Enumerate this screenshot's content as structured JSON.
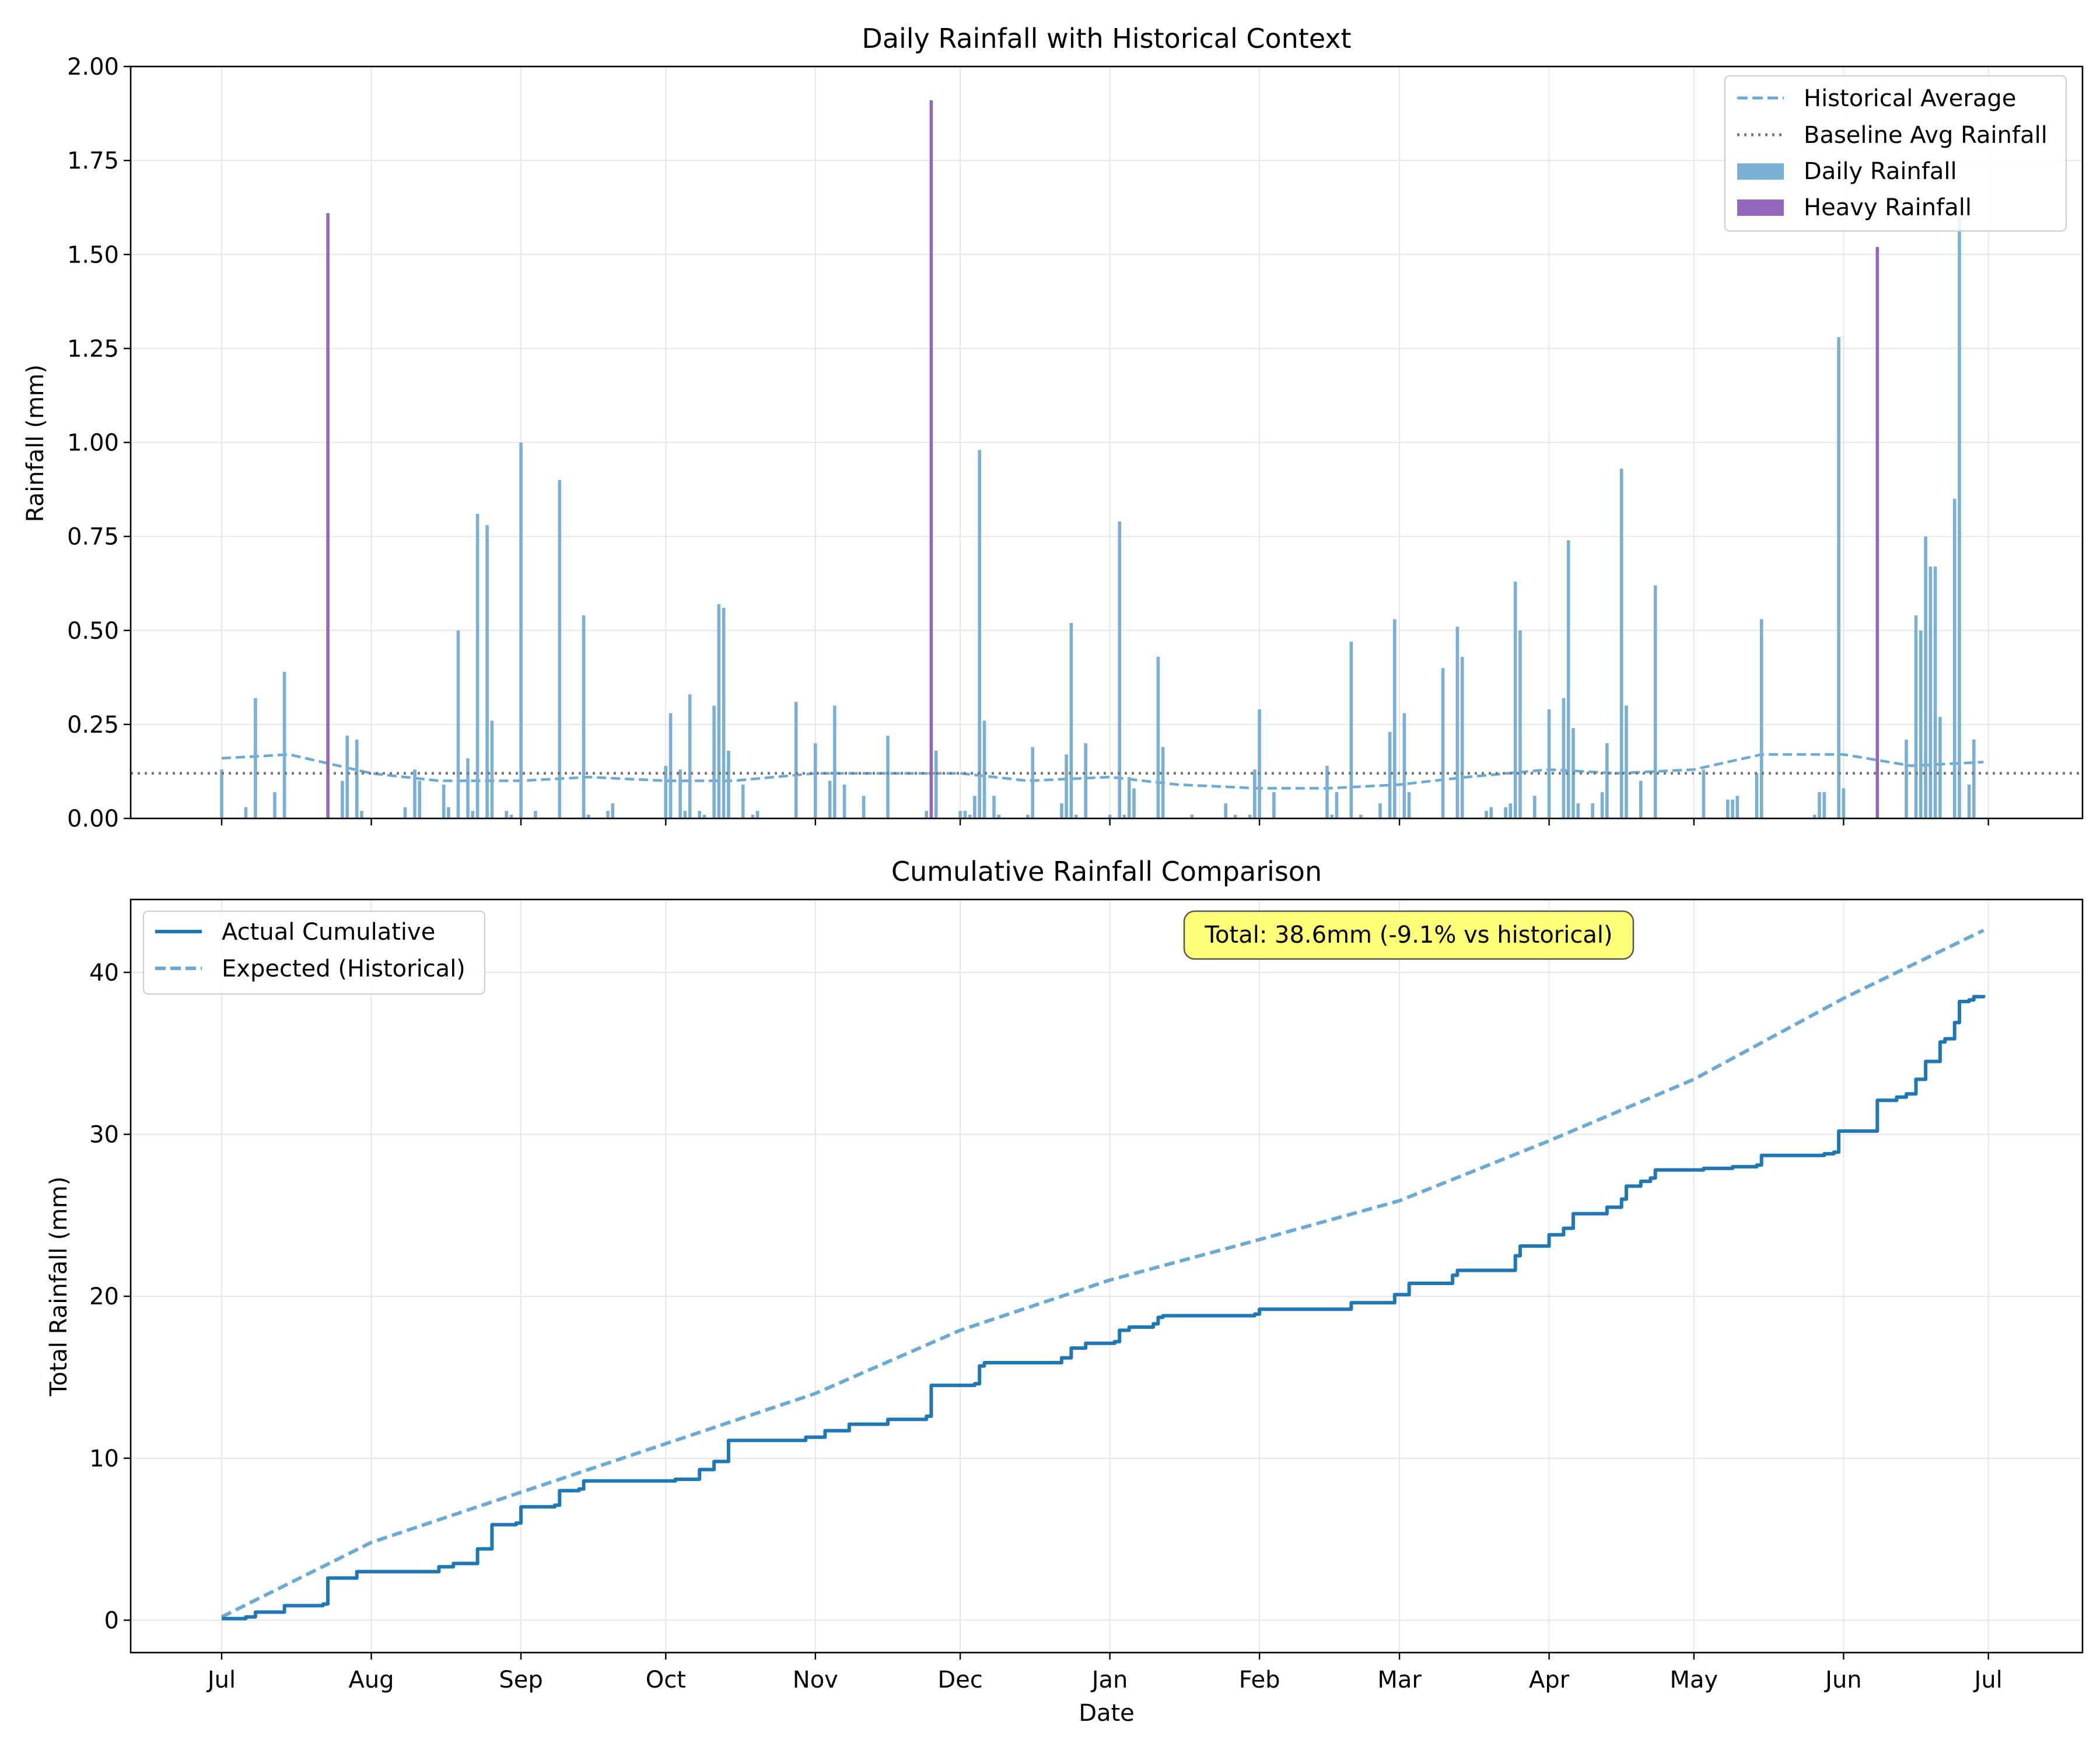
{
  "colors": {
    "daily": "#7bafd4",
    "heavy": "#9467bd",
    "hist_line": "#6aaad4",
    "baseline": "#777777",
    "cumulative": "#1f77b4",
    "expected": "#6aaad4",
    "annotation_bg": "#ffff77"
  },
  "chart_data": [
    {
      "type": "bar",
      "title": "Daily Rainfall with Historical Context",
      "xlabel": "",
      "ylabel": "Rainfall (mm)",
      "x_range": [
        "2023-07-01",
        "2024-06-30"
      ],
      "ylim": [
        0,
        2.0
      ],
      "yticks": [
        "0.00",
        "0.25",
        "0.50",
        "0.75",
        "1.00",
        "1.25",
        "1.50",
        "1.75",
        "2.00"
      ],
      "x_tick_labels": [
        "Jul",
        "Aug",
        "Sep",
        "Oct",
        "Nov",
        "Dec",
        "Jan",
        "Feb",
        "Mar",
        "Apr",
        "May",
        "Jun",
        "Jul"
      ],
      "x_tick_dates": [
        "2023-07-01",
        "2023-08-01",
        "2023-09-01",
        "2023-10-01",
        "2023-11-01",
        "2023-12-01",
        "2024-01-01",
        "2024-02-01",
        "2024-03-01",
        "2024-04-01",
        "2024-05-01",
        "2024-06-01",
        "2024-07-01"
      ],
      "grid": true,
      "legend": "top-right",
      "legend_entries": [
        "Historical Average",
        "Baseline Avg Rainfall",
        "Daily Rainfall",
        "Heavy Rainfall"
      ],
      "baseline": 0.12,
      "heavy_threshold": 1.5,
      "daily": [
        [
          "2023-07-01",
          0.13
        ],
        [
          "2023-07-06",
          0.03
        ],
        [
          "2023-07-08",
          0.32
        ],
        [
          "2023-07-12",
          0.07
        ],
        [
          "2023-07-14",
          0.39
        ],
        [
          "2023-07-23",
          1.61
        ],
        [
          "2023-07-26",
          0.1
        ],
        [
          "2023-07-27",
          0.22
        ],
        [
          "2023-07-29",
          0.21
        ],
        [
          "2023-07-30",
          0.02
        ],
        [
          "2023-08-08",
          0.03
        ],
        [
          "2023-08-10",
          0.13
        ],
        [
          "2023-08-11",
          0.1
        ],
        [
          "2023-08-16",
          0.09
        ],
        [
          "2023-08-17",
          0.03
        ],
        [
          "2023-08-19",
          0.5
        ],
        [
          "2023-08-21",
          0.16
        ],
        [
          "2023-08-22",
          0.02
        ],
        [
          "2023-08-23",
          0.81
        ],
        [
          "2023-08-25",
          0.78
        ],
        [
          "2023-08-26",
          0.26
        ],
        [
          "2023-08-29",
          0.02
        ],
        [
          "2023-08-30",
          0.01
        ],
        [
          "2023-09-01",
          1.0
        ],
        [
          "2023-09-04",
          0.02
        ],
        [
          "2023-09-09",
          0.9
        ],
        [
          "2023-09-14",
          0.54
        ],
        [
          "2023-09-15",
          0.01
        ],
        [
          "2023-09-19",
          0.02
        ],
        [
          "2023-09-20",
          0.04
        ],
        [
          "2023-10-01",
          0.14
        ],
        [
          "2023-10-02",
          0.28
        ],
        [
          "2023-10-04",
          0.13
        ],
        [
          "2023-10-05",
          0.02
        ],
        [
          "2023-10-06",
          0.33
        ],
        [
          "2023-10-08",
          0.02
        ],
        [
          "2023-10-09",
          0.01
        ],
        [
          "2023-10-11",
          0.3
        ],
        [
          "2023-10-12",
          0.57
        ],
        [
          "2023-10-13",
          0.56
        ],
        [
          "2023-10-14",
          0.18
        ],
        [
          "2023-10-17",
          0.09
        ],
        [
          "2023-10-19",
          0.01
        ],
        [
          "2023-10-20",
          0.02
        ],
        [
          "2023-10-28",
          0.31
        ],
        [
          "2023-11-01",
          0.2
        ],
        [
          "2023-11-04",
          0.1
        ],
        [
          "2023-11-05",
          0.3
        ],
        [
          "2023-11-07",
          0.09
        ],
        [
          "2023-11-11",
          0.06
        ],
        [
          "2023-11-16",
          0.22
        ],
        [
          "2023-11-24",
          0.02
        ],
        [
          "2023-11-25",
          1.91
        ],
        [
          "2023-11-26",
          0.18
        ],
        [
          "2023-12-01",
          0.02
        ],
        [
          "2023-12-02",
          0.02
        ],
        [
          "2023-12-03",
          0.01
        ],
        [
          "2023-12-04",
          0.06
        ],
        [
          "2023-12-05",
          0.98
        ],
        [
          "2023-12-06",
          0.26
        ],
        [
          "2023-12-08",
          0.06
        ],
        [
          "2023-12-09",
          0.01
        ],
        [
          "2023-12-15",
          0.01
        ],
        [
          "2023-12-16",
          0.19
        ],
        [
          "2023-12-22",
          0.04
        ],
        [
          "2023-12-23",
          0.17
        ],
        [
          "2023-12-24",
          0.52
        ],
        [
          "2023-12-25",
          0.01
        ],
        [
          "2023-12-27",
          0.2
        ],
        [
          "2024-01-01",
          0.01
        ],
        [
          "2024-01-03",
          0.79
        ],
        [
          "2024-01-04",
          0.01
        ],
        [
          "2024-01-05",
          0.11
        ],
        [
          "2024-01-06",
          0.08
        ],
        [
          "2024-01-11",
          0.43
        ],
        [
          "2024-01-12",
          0.19
        ],
        [
          "2024-01-18",
          0.01
        ],
        [
          "2024-01-25",
          0.04
        ],
        [
          "2024-01-27",
          0.01
        ],
        [
          "2024-01-30",
          0.01
        ],
        [
          "2024-01-31",
          0.13
        ],
        [
          "2024-02-01",
          0.29
        ],
        [
          "2024-02-04",
          0.07
        ],
        [
          "2024-02-15",
          0.14
        ],
        [
          "2024-02-16",
          0.01
        ],
        [
          "2024-02-17",
          0.07
        ],
        [
          "2024-02-20",
          0.47
        ],
        [
          "2024-02-22",
          0.01
        ],
        [
          "2024-02-26",
          0.04
        ],
        [
          "2024-02-28",
          0.23
        ],
        [
          "2024-02-29",
          0.53
        ],
        [
          "2024-03-02",
          0.28
        ],
        [
          "2024-03-03",
          0.07
        ],
        [
          "2024-03-10",
          0.4
        ],
        [
          "2024-03-13",
          0.51
        ],
        [
          "2024-03-14",
          0.43
        ],
        [
          "2024-03-19",
          0.02
        ],
        [
          "2024-03-20",
          0.03
        ],
        [
          "2024-03-23",
          0.03
        ],
        [
          "2024-03-24",
          0.04
        ],
        [
          "2024-03-25",
          0.63
        ],
        [
          "2024-03-26",
          0.5
        ],
        [
          "2024-03-29",
          0.06
        ],
        [
          "2024-04-01",
          0.29
        ],
        [
          "2024-04-04",
          0.32
        ],
        [
          "2024-04-05",
          0.74
        ],
        [
          "2024-04-06",
          0.24
        ],
        [
          "2024-04-07",
          0.04
        ],
        [
          "2024-04-10",
          0.04
        ],
        [
          "2024-04-12",
          0.07
        ],
        [
          "2024-04-13",
          0.2
        ],
        [
          "2024-04-16",
          0.93
        ],
        [
          "2024-04-17",
          0.3
        ],
        [
          "2024-04-20",
          0.1
        ],
        [
          "2024-04-23",
          0.62
        ],
        [
          "2024-05-03",
          0.13
        ],
        [
          "2024-05-08",
          0.05
        ],
        [
          "2024-05-09",
          0.05
        ],
        [
          "2024-05-10",
          0.06
        ],
        [
          "2024-05-14",
          0.12
        ],
        [
          "2024-05-15",
          0.53
        ],
        [
          "2024-05-26",
          0.01
        ],
        [
          "2024-05-27",
          0.07
        ],
        [
          "2024-05-28",
          0.07
        ],
        [
          "2024-05-31",
          1.28
        ],
        [
          "2024-06-01",
          0.08
        ],
        [
          "2024-06-08",
          1.52
        ],
        [
          "2024-06-14",
          0.21
        ],
        [
          "2024-06-16",
          0.54
        ],
        [
          "2024-06-17",
          0.5
        ],
        [
          "2024-06-18",
          0.75
        ],
        [
          "2024-06-19",
          0.67
        ],
        [
          "2024-06-20",
          0.67
        ],
        [
          "2024-06-21",
          0.27
        ],
        [
          "2024-06-24",
          0.85
        ],
        [
          "2024-06-25",
          1.6
        ],
        [
          "2024-06-27",
          0.09
        ],
        [
          "2024-06-28",
          0.21
        ]
      ],
      "historical_average": {
        "x": [
          "2023-07-01",
          "2023-07-15",
          "2023-08-01",
          "2023-08-15",
          "2023-09-01",
          "2023-09-15",
          "2023-10-01",
          "2023-10-15",
          "2023-11-01",
          "2023-11-15",
          "2023-12-01",
          "2023-12-15",
          "2024-01-01",
          "2024-01-15",
          "2024-02-01",
          "2024-02-15",
          "2024-03-01",
          "2024-03-15",
          "2024-04-01",
          "2024-04-15",
          "2024-05-01",
          "2024-05-15",
          "2024-06-01",
          "2024-06-15",
          "2024-06-30"
        ],
        "values": [
          0.16,
          0.17,
          0.12,
          0.1,
          0.1,
          0.11,
          0.1,
          0.1,
          0.12,
          0.12,
          0.12,
          0.1,
          0.11,
          0.09,
          0.08,
          0.08,
          0.09,
          0.11,
          0.13,
          0.12,
          0.13,
          0.17,
          0.17,
          0.14,
          0.15
        ]
      }
    },
    {
      "type": "line",
      "title": "Cumulative Rainfall Comparison",
      "xlabel": "Date",
      "ylabel": "Total Rainfall (mm)",
      "ylim": [
        -2,
        44.5
      ],
      "yticks": [
        "0",
        "10",
        "20",
        "30",
        "40"
      ],
      "x_tick_labels": [
        "Jul",
        "Aug",
        "Sep",
        "Oct",
        "Nov",
        "Dec",
        "Jan",
        "Feb",
        "Mar",
        "Apr",
        "May",
        "Jun",
        "Jul"
      ],
      "grid": true,
      "legend": "top-left",
      "annotation": "Total: 38.6mm (-9.1% vs historical)",
      "series": [
        {
          "name": "Actual Cumulative",
          "x": [
            "2023-07-01",
            "2023-07-06",
            "2023-07-08",
            "2023-07-14",
            "2023-07-22",
            "2023-07-23",
            "2023-07-29",
            "2023-08-15",
            "2023-08-18",
            "2023-08-23",
            "2023-08-26",
            "2023-08-31",
            "2023-09-01",
            "2023-09-08",
            "2023-09-09",
            "2023-09-13",
            "2023-09-14",
            "2023-10-03",
            "2023-10-08",
            "2023-10-11",
            "2023-10-14",
            "2023-10-30",
            "2023-11-03",
            "2023-11-08",
            "2023-11-16",
            "2023-11-24",
            "2023-11-25",
            "2023-12-04",
            "2023-12-05",
            "2023-12-06",
            "2023-12-22",
            "2023-12-24",
            "2023-12-27",
            "2024-01-02",
            "2024-01-03",
            "2024-01-05",
            "2024-01-10",
            "2024-01-11",
            "2024-01-12",
            "2024-01-31",
            "2024-02-01",
            "2024-02-20",
            "2024-02-29",
            "2024-03-03",
            "2024-03-12",
            "2024-03-13",
            "2024-03-25",
            "2024-03-26",
            "2024-04-01",
            "2024-04-04",
            "2024-04-06",
            "2024-04-13",
            "2024-04-16",
            "2024-04-17",
            "2024-04-20",
            "2024-04-22",
            "2024-04-23",
            "2024-05-03",
            "2024-05-09",
            "2024-05-14",
            "2024-05-15",
            "2024-05-28",
            "2024-05-30",
            "2024-05-31",
            "2024-06-07",
            "2024-06-08",
            "2024-06-12",
            "2024-06-14",
            "2024-06-16",
            "2024-06-18",
            "2024-06-21",
            "2024-06-22",
            "2024-06-23",
            "2024-06-24",
            "2024-06-25",
            "2024-06-27",
            "2024-06-28",
            "2024-06-30"
          ],
          "values": [
            0.1,
            0.2,
            0.5,
            0.9,
            1.0,
            2.6,
            3.0,
            3.3,
            3.5,
            4.4,
            5.9,
            6.0,
            7.0,
            7.1,
            8.0,
            8.1,
            8.6,
            8.7,
            9.3,
            9.8,
            11.1,
            11.3,
            11.7,
            12.1,
            12.4,
            12.6,
            14.5,
            14.6,
            15.7,
            15.9,
            16.2,
            16.8,
            17.1,
            17.2,
            17.9,
            18.1,
            18.3,
            18.7,
            18.8,
            18.9,
            19.2,
            19.6,
            20.1,
            20.8,
            21.3,
            21.6,
            22.5,
            23.1,
            23.8,
            24.2,
            25.1,
            25.5,
            26.0,
            26.8,
            27.1,
            27.3,
            27.8,
            27.9,
            28.0,
            28.1,
            28.7,
            28.8,
            28.9,
            30.2,
            30.2,
            32.1,
            32.3,
            32.5,
            33.4,
            34.5,
            35.7,
            35.9,
            35.9,
            36.9,
            38.2,
            38.3,
            38.5,
            38.6
          ]
        },
        {
          "name": "Expected (Historical)",
          "x": [
            "2023-07-01",
            "2023-08-01",
            "2023-09-01",
            "2023-10-01",
            "2023-11-01",
            "2023-12-01",
            "2024-01-01",
            "2024-02-01",
            "2024-03-01",
            "2024-04-01",
            "2024-05-01",
            "2024-06-01",
            "2024-06-30"
          ],
          "values": [
            0.2,
            4.8,
            7.9,
            10.9,
            14.0,
            17.9,
            21.0,
            23.5,
            25.9,
            29.6,
            33.4,
            38.4,
            42.6
          ]
        }
      ]
    }
  ]
}
